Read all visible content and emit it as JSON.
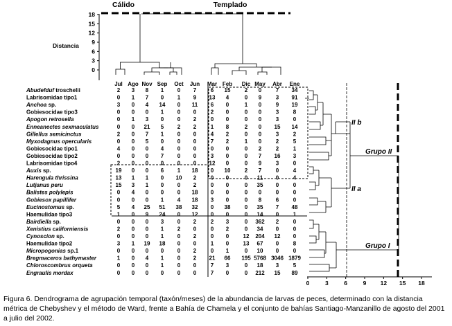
{
  "figure": {
    "header_left": "Cálido",
    "header_right": "Templado",
    "distance_label": "Distancia",
    "y_ticks": [
      "18",
      "15",
      "12",
      "9",
      "6",
      "3",
      "0"
    ],
    "x_ticks": [
      "0",
      "3",
      "6",
      "9",
      "12",
      "15",
      "18"
    ],
    "group_labels": [
      "Grupo II",
      "Grupo I"
    ],
    "subgroup_labels": [
      "II b",
      "II a"
    ],
    "months": [
      "Jul",
      "Ago",
      "Nov",
      "Sep",
      "Oct",
      "Jun",
      "Mar",
      "Feb",
      "Dic",
      "May",
      "Abr",
      "Ene"
    ]
  },
  "species": [
    {
      "name": "Abudefduf",
      "name2": "troschelii",
      "italic": true,
      "values": [
        "2",
        "3",
        "8",
        "1",
        "0",
        "7",
        "6",
        "15",
        "2",
        "0",
        "7",
        "34"
      ]
    },
    {
      "name": "Labrisomidae tipo1",
      "name2": "",
      "italic": false,
      "values": [
        "0",
        "1",
        "7",
        "0",
        "1",
        "9",
        "13",
        "4",
        "0",
        "9",
        "3",
        "91"
      ]
    },
    {
      "name": "Anchoa",
      "name2": "sp.",
      "italic": true,
      "values": [
        "3",
        "0",
        "4",
        "14",
        "0",
        "11",
        "6",
        "0",
        "1",
        "0",
        "9",
        "19"
      ]
    },
    {
      "name": "Gobiesocidae tipo3",
      "name2": "",
      "italic": false,
      "values": [
        "0",
        "0",
        "0",
        "1",
        "0",
        "0",
        "2",
        "0",
        "0",
        "0",
        "3",
        "8"
      ]
    },
    {
      "name": "Apogon retrosella",
      "name2": "",
      "italic": true,
      "values": [
        "0",
        "1",
        "3",
        "0",
        "0",
        "2",
        "0",
        "0",
        "0",
        "0",
        "3",
        "0"
      ]
    },
    {
      "name": "Enneanectes sexmaculatus",
      "name2": "",
      "italic": true,
      "values": [
        "0",
        "0",
        "21",
        "5",
        "2",
        "2",
        "1",
        "8",
        "2",
        "0",
        "15",
        "14"
      ]
    },
    {
      "name": "Gillellus semicinctus",
      "name2": "",
      "italic": true,
      "values": [
        "2",
        "0",
        "7",
        "1",
        "0",
        "0",
        "4",
        "2",
        "0",
        "0",
        "3",
        "2"
      ]
    },
    {
      "name": "Myxodagnus opercularis",
      "name2": "",
      "italic": true,
      "values": [
        "0",
        "0",
        "5",
        "0",
        "0",
        "0",
        "7",
        "2",
        "1",
        "0",
        "2",
        "5"
      ]
    },
    {
      "name": "Gobiesocidae tipo1",
      "name2": "",
      "italic": false,
      "values": [
        "4",
        "0",
        "0",
        "4",
        "0",
        "0",
        "0",
        "0",
        "0",
        "2",
        "2",
        "1"
      ]
    },
    {
      "name": "Gobiesocidae tipo2",
      "name2": "",
      "italic": false,
      "values": [
        "0",
        "0",
        "0",
        "7",
        "0",
        "0",
        "3",
        "0",
        "0",
        "7",
        "16",
        "3"
      ]
    },
    {
      "name": "Labrisomidae tipo4",
      "name2": "",
      "italic": false,
      "values": [
        "2",
        "0",
        "0",
        "0",
        "0",
        "0",
        "12",
        "0",
        "0",
        "9",
        "3",
        "0"
      ]
    },
    {
      "name": "Auxis",
      "name2": "sp.",
      "italic": true,
      "values": [
        "19",
        "0",
        "0",
        "6",
        "1",
        "18",
        "0",
        "10",
        "2",
        "7",
        "0",
        "4"
      ]
    },
    {
      "name": "Harengula thrissina",
      "name2": "",
      "italic": true,
      "values": [
        "13",
        "1",
        "1",
        "0",
        "10",
        "2",
        "0",
        "0",
        "0",
        "11",
        "0",
        "4"
      ]
    },
    {
      "name": "Lutjanus peru",
      "name2": "",
      "italic": true,
      "values": [
        "15",
        "3",
        "1",
        "0",
        "0",
        "2",
        "0",
        "0",
        "0",
        "35",
        "0",
        "0"
      ]
    },
    {
      "name": "Balistes polylepis",
      "name2": "",
      "italic": true,
      "values": [
        "0",
        "4",
        "0",
        "0",
        "0",
        "18",
        "0",
        "0",
        "0",
        "0",
        "0",
        "0"
      ]
    },
    {
      "name": "Gobiesox papillifer",
      "name2": "",
      "italic": true,
      "values": [
        "0",
        "0",
        "0",
        "1",
        "4",
        "18",
        "3",
        "0",
        "0",
        "8",
        "6",
        "0"
      ]
    },
    {
      "name": "Eucinostomus",
      "name2": "sp.",
      "italic": true,
      "values": [
        "5",
        "4",
        "25",
        "51",
        "38",
        "32",
        "0",
        "38",
        "0",
        "35",
        "7",
        "48"
      ]
    },
    {
      "name": "Haemulidae tipo3",
      "name2": "",
      "italic": false,
      "values": [
        "1",
        "0",
        "9",
        "24",
        "0",
        "12",
        "0",
        "0",
        "0",
        "14",
        "0",
        "1"
      ]
    },
    {
      "name": "Bairdiella",
      "name2": "sp.",
      "italic": true,
      "values": [
        "0",
        "0",
        "0",
        "3",
        "0",
        "2",
        "2",
        "3",
        "0",
        "362",
        "2",
        "0"
      ]
    },
    {
      "name": "Xenistius californiensis",
      "name2": "",
      "italic": true,
      "values": [
        "2",
        "0",
        "0",
        "1",
        "2",
        "0",
        "0",
        "2",
        "0",
        "34",
        "0",
        "0"
      ]
    },
    {
      "name": "Cynoscion",
      "name2": "sp.",
      "italic": true,
      "values": [
        "0",
        "0",
        "0",
        "1",
        "0",
        "2",
        "0",
        "0",
        "12",
        "204",
        "12",
        "0"
      ]
    },
    {
      "name": "Haemulidae tipo2",
      "name2": "",
      "italic": false,
      "values": [
        "3",
        "1",
        "19",
        "18",
        "0",
        "0",
        "1",
        "0",
        "13",
        "67",
        "0",
        "8"
      ]
    },
    {
      "name": "Micropogonias",
      "name2": "sp.1",
      "italic": true,
      "values": [
        "0",
        "0",
        "0",
        "0",
        "0",
        "2",
        "0",
        "1",
        "0",
        "10",
        "0",
        "0"
      ]
    },
    {
      "name": "Bregmaceros bathymaster",
      "name2": "",
      "italic": true,
      "values": [
        "1",
        "0",
        "4",
        "1",
        "0",
        "2",
        "21",
        "66",
        "195",
        "5768",
        "3046",
        "1879"
      ]
    },
    {
      "name": "Chloroscombrus orqueta",
      "name2": "",
      "italic": true,
      "values": [
        "0",
        "0",
        "0",
        "1",
        "0",
        "0",
        "7",
        "3",
        "0",
        "18",
        "3",
        "5"
      ]
    },
    {
      "name": "Engraulis mordax",
      "name2": "",
      "italic": true,
      "values": [
        "0",
        "0",
        "0",
        "0",
        "0",
        "0",
        "7",
        "0",
        "0",
        "212",
        "15",
        "89"
      ]
    }
  ],
  "caption": "Figura 6. Dendrograma de agrupación temporal (taxón/meses) de la abundancia de larvas de peces, determinado con la distancia métrica de Chebyshev y el método de Ward, frente a Bahía de Chamela y el conjunto de bahías Santiago-Manzanillo de agosto del 2001 a julio del 2002."
}
